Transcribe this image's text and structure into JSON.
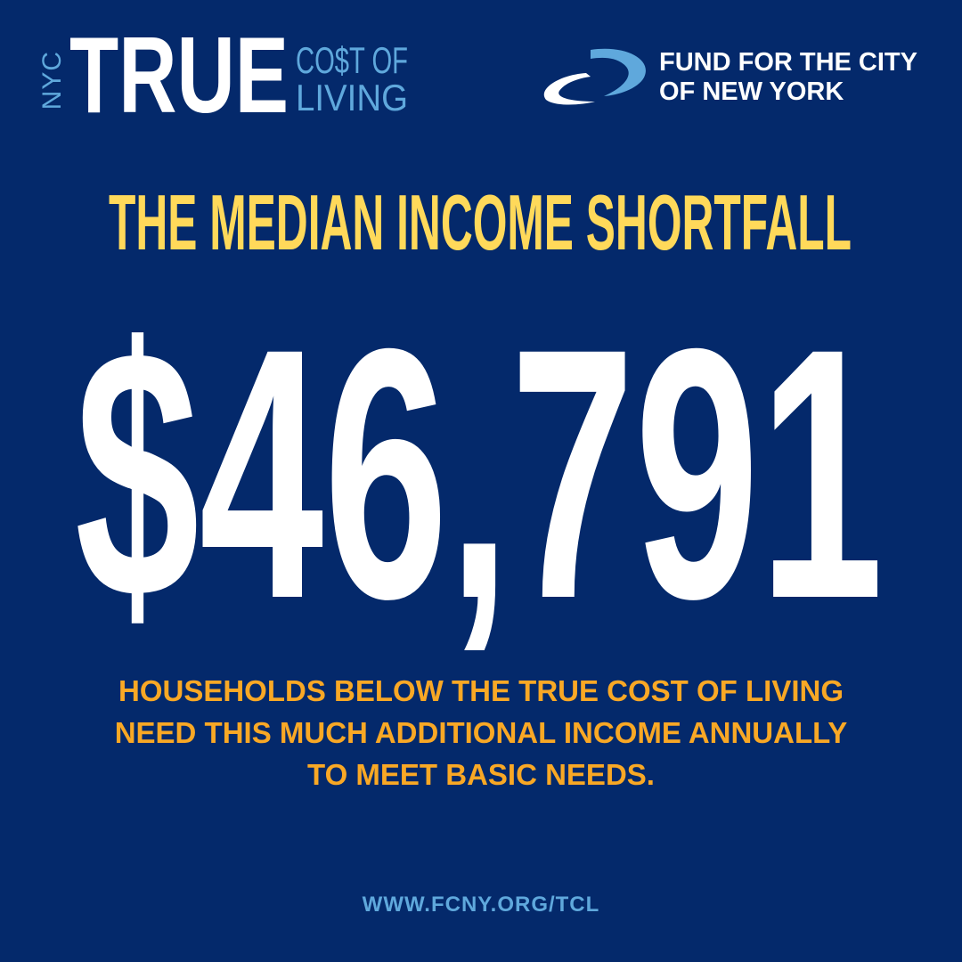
{
  "logo_left": {
    "nyc": "NYC",
    "true": "TRUE",
    "cost": "CO$T OF",
    "living": "LIVING"
  },
  "logo_right": {
    "line1": "FUND FOR THE CITY",
    "line2": "OF NEW YORK"
  },
  "title": "THE MEDIAN INCOME SHORTFALL",
  "amount": "$46,791",
  "description": [
    "HOUSEHOLDS BELOW THE TRUE COST OF LIVING",
    "NEED THIS MUCH ADDITIONAL INCOME ANNUALLY",
    "TO MEET BASIC NEEDS."
  ],
  "url": "WWW.FCNY.ORG/TCL",
  "colors": {
    "background": "#04296B",
    "title": "#FFD95A",
    "description": "#F9A825",
    "accent": "#5FA8DC"
  }
}
